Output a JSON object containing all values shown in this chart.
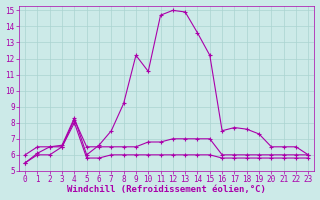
{
  "xlabel": "Windchill (Refroidissement éolien,°C)",
  "background_color": "#cceae8",
  "grid_color": "#aad4d0",
  "line_color": "#aa00aa",
  "x_ticks": [
    0,
    1,
    2,
    3,
    4,
    5,
    6,
    7,
    8,
    9,
    10,
    11,
    12,
    13,
    14,
    15,
    16,
    17,
    18,
    19,
    20,
    21,
    22,
    23
  ],
  "y_ticks": [
    5,
    6,
    7,
    8,
    9,
    10,
    11,
    12,
    13,
    14,
    15
  ],
  "ylim": [
    5,
    15.3
  ],
  "xlim": [
    -0.5,
    23.5
  ],
  "series1_x": [
    0,
    1,
    2,
    3,
    4,
    5,
    6,
    7,
    8,
    9,
    10,
    11,
    12,
    13,
    14,
    15,
    16,
    17,
    18,
    19,
    20,
    21,
    22,
    23
  ],
  "series1_y": [
    5.5,
    6.1,
    6.5,
    6.6,
    8.3,
    6.0,
    6.6,
    7.5,
    9.2,
    12.2,
    11.2,
    14.7,
    15.0,
    14.9,
    13.6,
    12.2,
    7.5,
    7.7,
    7.6,
    7.3,
    6.5,
    6.5,
    6.5,
    6.0
  ],
  "series2_x": [
    0,
    1,
    2,
    3,
    4,
    5,
    6,
    7,
    8,
    9,
    10,
    11,
    12,
    13,
    14,
    15,
    16,
    17,
    18,
    19,
    20,
    21,
    22,
    23
  ],
  "series2_y": [
    6.0,
    6.5,
    6.5,
    6.5,
    8.2,
    6.5,
    6.5,
    6.5,
    6.5,
    6.5,
    6.8,
    6.8,
    7.0,
    7.0,
    7.0,
    7.0,
    6.0,
    6.0,
    6.0,
    6.0,
    6.0,
    6.0,
    6.0,
    6.0
  ],
  "series3_x": [
    0,
    1,
    2,
    3,
    4,
    5,
    6,
    7,
    8,
    9,
    10,
    11,
    12,
    13,
    14,
    15,
    16,
    17,
    18,
    19,
    20,
    21,
    22,
    23
  ],
  "series3_y": [
    5.5,
    6.0,
    6.0,
    6.5,
    8.0,
    5.8,
    5.8,
    6.0,
    6.0,
    6.0,
    6.0,
    6.0,
    6.0,
    6.0,
    6.0,
    6.0,
    5.8,
    5.8,
    5.8,
    5.8,
    5.8,
    5.8,
    5.8,
    5.8
  ],
  "tick_fontsize": 5.5,
  "xlabel_fontsize": 6.5
}
